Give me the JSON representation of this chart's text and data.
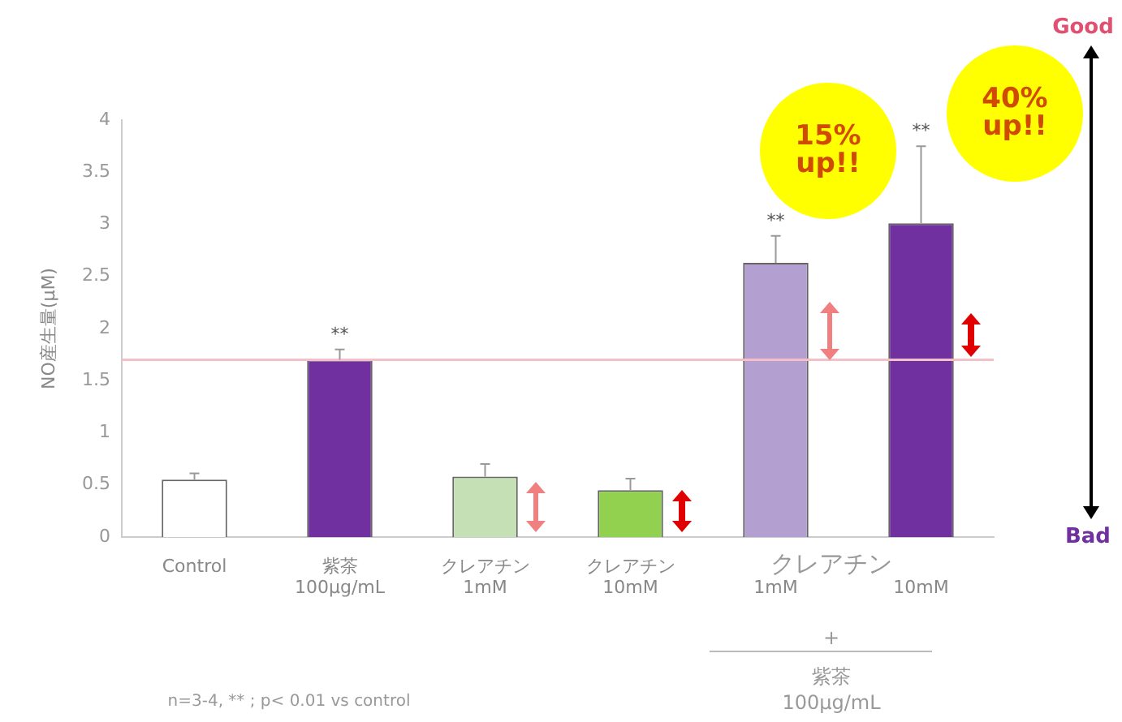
{
  "chart_data": {
    "type": "bar",
    "ylabel": "NO産生量(μM)",
    "categories": [
      "Control",
      "紫茶\n100μg/mL",
      "クレアチン\n1mM",
      "クレアチン\n10mM",
      "1mM",
      "10mM"
    ],
    "values": [
      0.55,
      1.7,
      0.58,
      0.45,
      2.63,
      3.01
    ],
    "colors": [
      "#ffffff",
      "#7030a0",
      "#c5e0b4",
      "#92d050",
      "#b4a0d0",
      "#7030a0"
    ],
    "errors": [
      [
        0.55,
        0.61
      ],
      [
        1.7,
        1.8
      ],
      [
        0.58,
        0.7
      ],
      [
        0.45,
        0.56
      ],
      [
        2.63,
        2.89
      ],
      [
        3.01,
        3.75
      ]
    ],
    "ylim": [
      0,
      4
    ],
    "yticks": [
      0,
      0.5,
      1,
      1.5,
      2,
      2.5,
      3,
      3.5,
      4
    ],
    "grid": false,
    "legend": false,
    "ref_lines": [
      {
        "axis": "y",
        "value": 1.7,
        "color": "#f4c0c8"
      }
    ],
    "annotations": [
      {
        "text": "**",
        "x": "紫茶\n100μg/mL",
        "y": 1.8
      },
      {
        "text": "**",
        "x": "1mM",
        "y": 2.89
      },
      {
        "text": "**",
        "x": "10mM",
        "y": 3.75
      },
      "15%\nup!!",
      "40%\nup!!",
      "Good",
      "Bad",
      "クレアチン",
      "+",
      "紫茶\n100μg/mL",
      "n=3-4, ** ; p< 0.01 vs control"
    ]
  }
}
